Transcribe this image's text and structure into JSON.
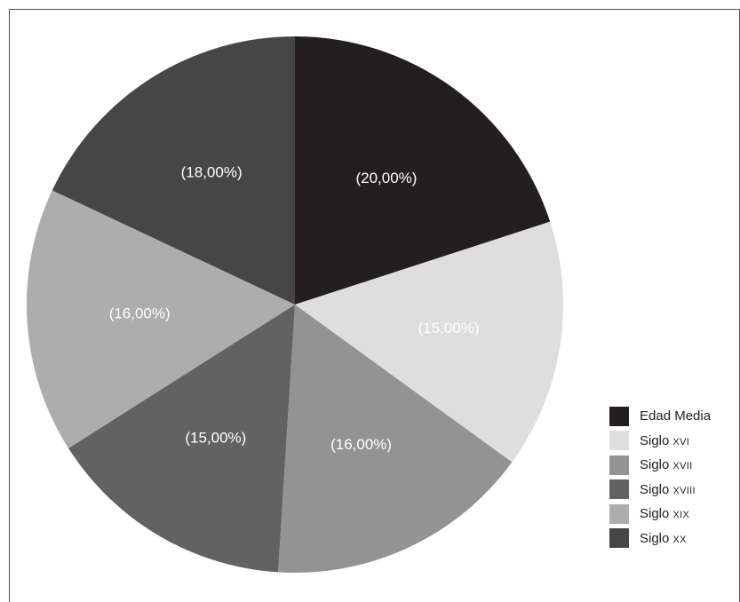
{
  "chart_data": {
    "type": "pie",
    "title": "",
    "slices": [
      {
        "label": "Edad Media",
        "display_label": "(20,00%)",
        "value": 20.0,
        "color": "#231f20",
        "label_color": "#ffffff"
      },
      {
        "label": "Siglo XVI",
        "display_label": "(15,00%)",
        "value": 15.0,
        "color": "#dedede",
        "label_color": "#ffffff"
      },
      {
        "label": "Siglo XVII",
        "display_label": "(16,00%)",
        "value": 16.0,
        "color": "#939393",
        "label_color": "#ffffff"
      },
      {
        "label": "Siglo XVIII",
        "display_label": "(15,00%)",
        "value": 15.0,
        "color": "#626262",
        "label_color": "#ffffff"
      },
      {
        "label": "Siglo XIX",
        "display_label": "(16,00%)",
        "value": 16.0,
        "color": "#adadad",
        "label_color": "#ffffff"
      },
      {
        "label": "Siglo XX",
        "display_label": "(18,00%)",
        "value": 18.0,
        "color": "#464646",
        "label_color": "#ffffff"
      }
    ],
    "legend": {
      "placement": "bottom-right",
      "entries": [
        {
          "main": "Edad Media",
          "roman": ""
        },
        {
          "main": "Siglo ",
          "roman": "XVI"
        },
        {
          "main": "Siglo ",
          "roman": "XVII"
        },
        {
          "main": "Siglo ",
          "roman": "XVIII"
        },
        {
          "main": "Siglo ",
          "roman": "XIX"
        },
        {
          "main": "Siglo ",
          "roman": "XX"
        }
      ]
    }
  }
}
